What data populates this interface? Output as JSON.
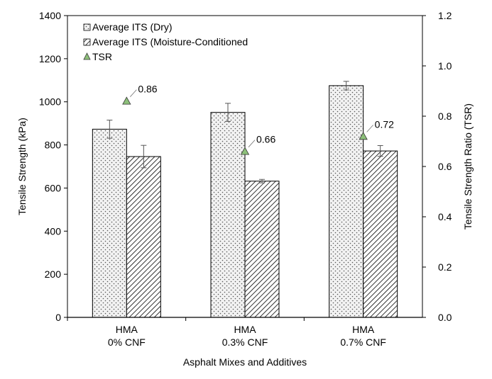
{
  "chart_data": {
    "type": "bar",
    "categories": [
      [
        "HMA",
        "0% CNF"
      ],
      [
        "HMA",
        "0.3% CNF"
      ],
      [
        "HMA",
        "0.7% CNF"
      ]
    ],
    "xlabel": "Asphalt Mixes and Additives",
    "ylabel": "Tensile Strength (kPa)",
    "y2label": "Tensile Strength Ratio (TSR)",
    "ylim": [
      0,
      1400
    ],
    "y2lim": [
      0.0,
      1.2
    ],
    "yticks": [
      "0",
      "200",
      "400",
      "600",
      "800",
      "1000",
      "1200",
      "1400"
    ],
    "y2ticks": [
      "0.0",
      "0.2",
      "0.4",
      "0.6",
      "0.8",
      "1.0",
      "1.2"
    ],
    "grid": false,
    "legend_position": "top-left",
    "series": [
      {
        "name": "Average ITS (Dry)",
        "pattern": "dots",
        "values": [
          873,
          951,
          1075
        ],
        "errors": [
          42,
          42,
          20
        ]
      },
      {
        "name": "Average ITS (Moisture-Conditioned",
        "pattern": "hatch",
        "values": [
          746,
          632,
          772
        ],
        "errors": [
          52,
          8,
          25
        ]
      }
    ],
    "tsr": {
      "name": "TSR",
      "values": [
        0.86,
        0.66,
        0.72
      ],
      "labels": [
        "0.86",
        "0.66",
        "0.72"
      ],
      "color": "#8dc07a"
    }
  }
}
